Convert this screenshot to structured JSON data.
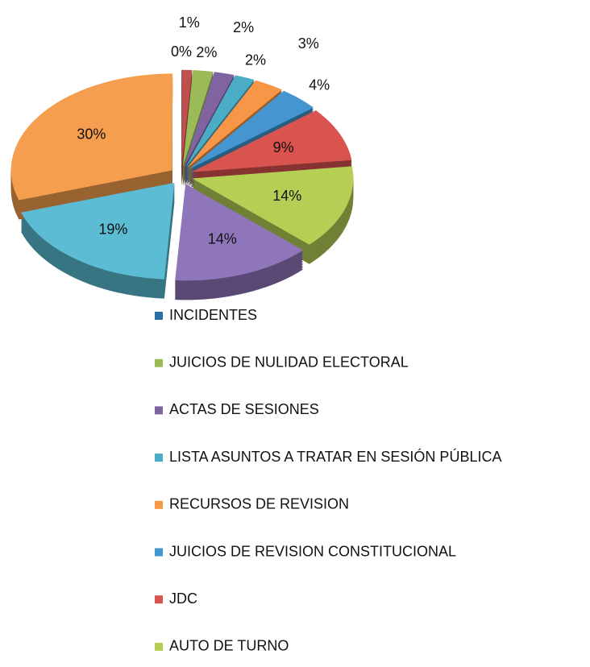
{
  "chart_data": {
    "type": "pie",
    "categories": [
      "INCIDENTES",
      null,
      "JUICIOS DE NULIDAD ELECTORAL",
      "ACTAS DE SESIONES",
      "LISTA ASUNTOS A TRATAR EN SESIÓN PÚBLICA",
      "RECURSOS DE REVISION",
      "JUICIOS DE REVISION CONSTITUCIONAL",
      "JDC",
      "AUTO DE TURNO",
      null,
      null,
      null
    ],
    "values": [
      0,
      1,
      2,
      2,
      2,
      3,
      4,
      9,
      14,
      14,
      19,
      30
    ],
    "value_labels": [
      "0%",
      "1%",
      "2%",
      "2%",
      "2%",
      "3%",
      "4%",
      "9%",
      "14%",
      "14%",
      "19%",
      "30%"
    ],
    "colors": [
      "#2f6da5",
      "#c0504d",
      "#9bbb59",
      "#8064a2",
      "#4bacc6",
      "#f79646",
      "#4596d0",
      "#d9534f",
      "#b5cf55",
      "#8f76bb",
      "#5bbcd3",
      "#f59e4f"
    ],
    "legend": "bottom"
  }
}
